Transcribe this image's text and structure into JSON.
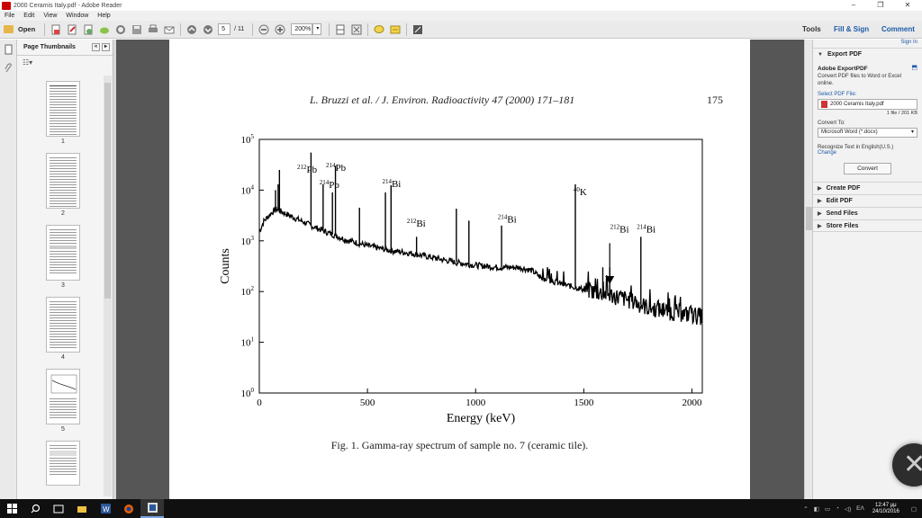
{
  "window": {
    "title": "2000 Ceramis Italy.pdf - Adobe Reader",
    "minimize_glyph": "–",
    "restore_glyph": "❐",
    "close_glyph": "✕"
  },
  "menu": [
    "File",
    "Edit",
    "View",
    "Window",
    "Help"
  ],
  "toolbar": {
    "open_label": "Open",
    "page_current": "5",
    "page_total": "/ 11",
    "zoom": "200%",
    "tools_label": "Tools",
    "fill_sign_label": "Fill & Sign",
    "comment_label": "Comment"
  },
  "thumbnails": {
    "title": "Page Thumbnails",
    "pages": [
      "1",
      "2",
      "3",
      "4",
      "5"
    ]
  },
  "document": {
    "running_header": "L. Bruzzi et al. / J. Environ. Radioactivity 47 (2000) 171–181",
    "page_number": "175",
    "caption": "Fig. 1.  Gamma-ray spectrum of sample no. 7 (ceramic tile)."
  },
  "chart_data": {
    "type": "line",
    "title": "",
    "xlabel": "Energy (keV)",
    "ylabel": "Counts",
    "xlim": [
      0,
      2048
    ],
    "ylim": [
      1,
      100000
    ],
    "yscale": "log",
    "xticks": [
      "0",
      "500",
      "1000",
      "1500",
      "2000"
    ],
    "xtick_values": [
      0,
      500,
      1000,
      1500,
      2000
    ],
    "yticks": [
      {
        "base": "10",
        "exp": "0"
      },
      {
        "base": "10",
        "exp": "1"
      },
      {
        "base": "10",
        "exp": "2"
      },
      {
        "base": "10",
        "exp": "3"
      },
      {
        "base": "10",
        "exp": "4"
      },
      {
        "base": "10",
        "exp": "5"
      }
    ],
    "ytick_values": [
      1,
      10,
      100,
      1000,
      10000,
      100000
    ],
    "grid": false,
    "baseline": {
      "x": [
        0,
        20,
        40,
        60,
        80,
        100,
        150,
        200,
        250,
        300,
        400,
        500,
        600,
        700,
        800,
        900,
        1000,
        1100,
        1200,
        1260,
        1300,
        1400,
        1500,
        1600,
        1700,
        1800,
        1900,
        2048
      ],
      "y": [
        1500,
        2400,
        3000,
        3700,
        4200,
        3800,
        3000,
        2400,
        1900,
        1550,
        1050,
        800,
        650,
        570,
        470,
        380,
        330,
        300,
        300,
        260,
        190,
        140,
        110,
        90,
        70,
        48,
        40,
        32
      ]
    },
    "peaks": [
      {
        "x": 75,
        "y": 10000
      },
      {
        "x": 87,
        "y": 13000
      },
      {
        "x": 93,
        "y": 25000
      },
      {
        "x": 239,
        "y": 55000
      },
      {
        "x": 295,
        "y": 13000
      },
      {
        "x": 338,
        "y": 9000
      },
      {
        "x": 352,
        "y": 30000
      },
      {
        "x": 463,
        "y": 4500
      },
      {
        "x": 583,
        "y": 9000
      },
      {
        "x": 609,
        "y": 12500
      },
      {
        "x": 727,
        "y": 1200
      },
      {
        "x": 911,
        "y": 4300
      },
      {
        "x": 969,
        "y": 2500
      },
      {
        "x": 1120,
        "y": 2000
      },
      {
        "x": 1461,
        "y": 13000
      },
      {
        "x": 1588,
        "y": 300
      },
      {
        "x": 1620,
        "y": 300
      },
      {
        "x": 1764,
        "y": 1200
      }
    ],
    "annotations": [
      {
        "mass": "212",
        "element": "Pb",
        "x": 175,
        "y": 22000
      },
      {
        "mass": "214",
        "element": "Pb",
        "x": 308,
        "y": 24000
      },
      {
        "mass": "214",
        "element": "Pb",
        "x": 278,
        "y": 11000
      },
      {
        "mass": "214",
        "element": "Bi",
        "x": 568,
        "y": 11500
      },
      {
        "mass": "212",
        "element": "Bi",
        "x": 682,
        "y": 1900
      },
      {
        "mass": "214",
        "element": "Bi",
        "x": 1102,
        "y": 2300
      },
      {
        "mass": "40",
        "element": "K",
        "x": 1452,
        "y": 8000
      },
      {
        "mass": "212",
        "element": "Bi",
        "x": 1622,
        "y": 1450
      },
      {
        "mass": "214",
        "element": "Bi",
        "x": 1745,
        "y": 1450
      }
    ],
    "arrow": {
      "x": 1620,
      "from_y": 900,
      "to_y": 140
    }
  },
  "export_panel": {
    "header": "Export PDF",
    "title": "Adobe ExportPDF",
    "description": "Convert PDF files to Word or Excel online.",
    "select_label": "Select PDF File:",
    "file_name": "2000 Ceramis Italy.pdf",
    "file_meta": "1 file / 201 KB",
    "convert_to_label": "Convert To:",
    "format": "Microsoft Word (*.docx)",
    "recognize": "Recognize Text in English(U.S.)",
    "change": "Change",
    "convert_button": "Convert",
    "sign_in": "Sign In",
    "sections": [
      "Create PDF",
      "Edit PDF",
      "Send Files",
      "Store Files"
    ]
  },
  "taskbar": {
    "time": "12:47 μμ",
    "date": "24/10/2016",
    "lang": "ΕΛ"
  }
}
